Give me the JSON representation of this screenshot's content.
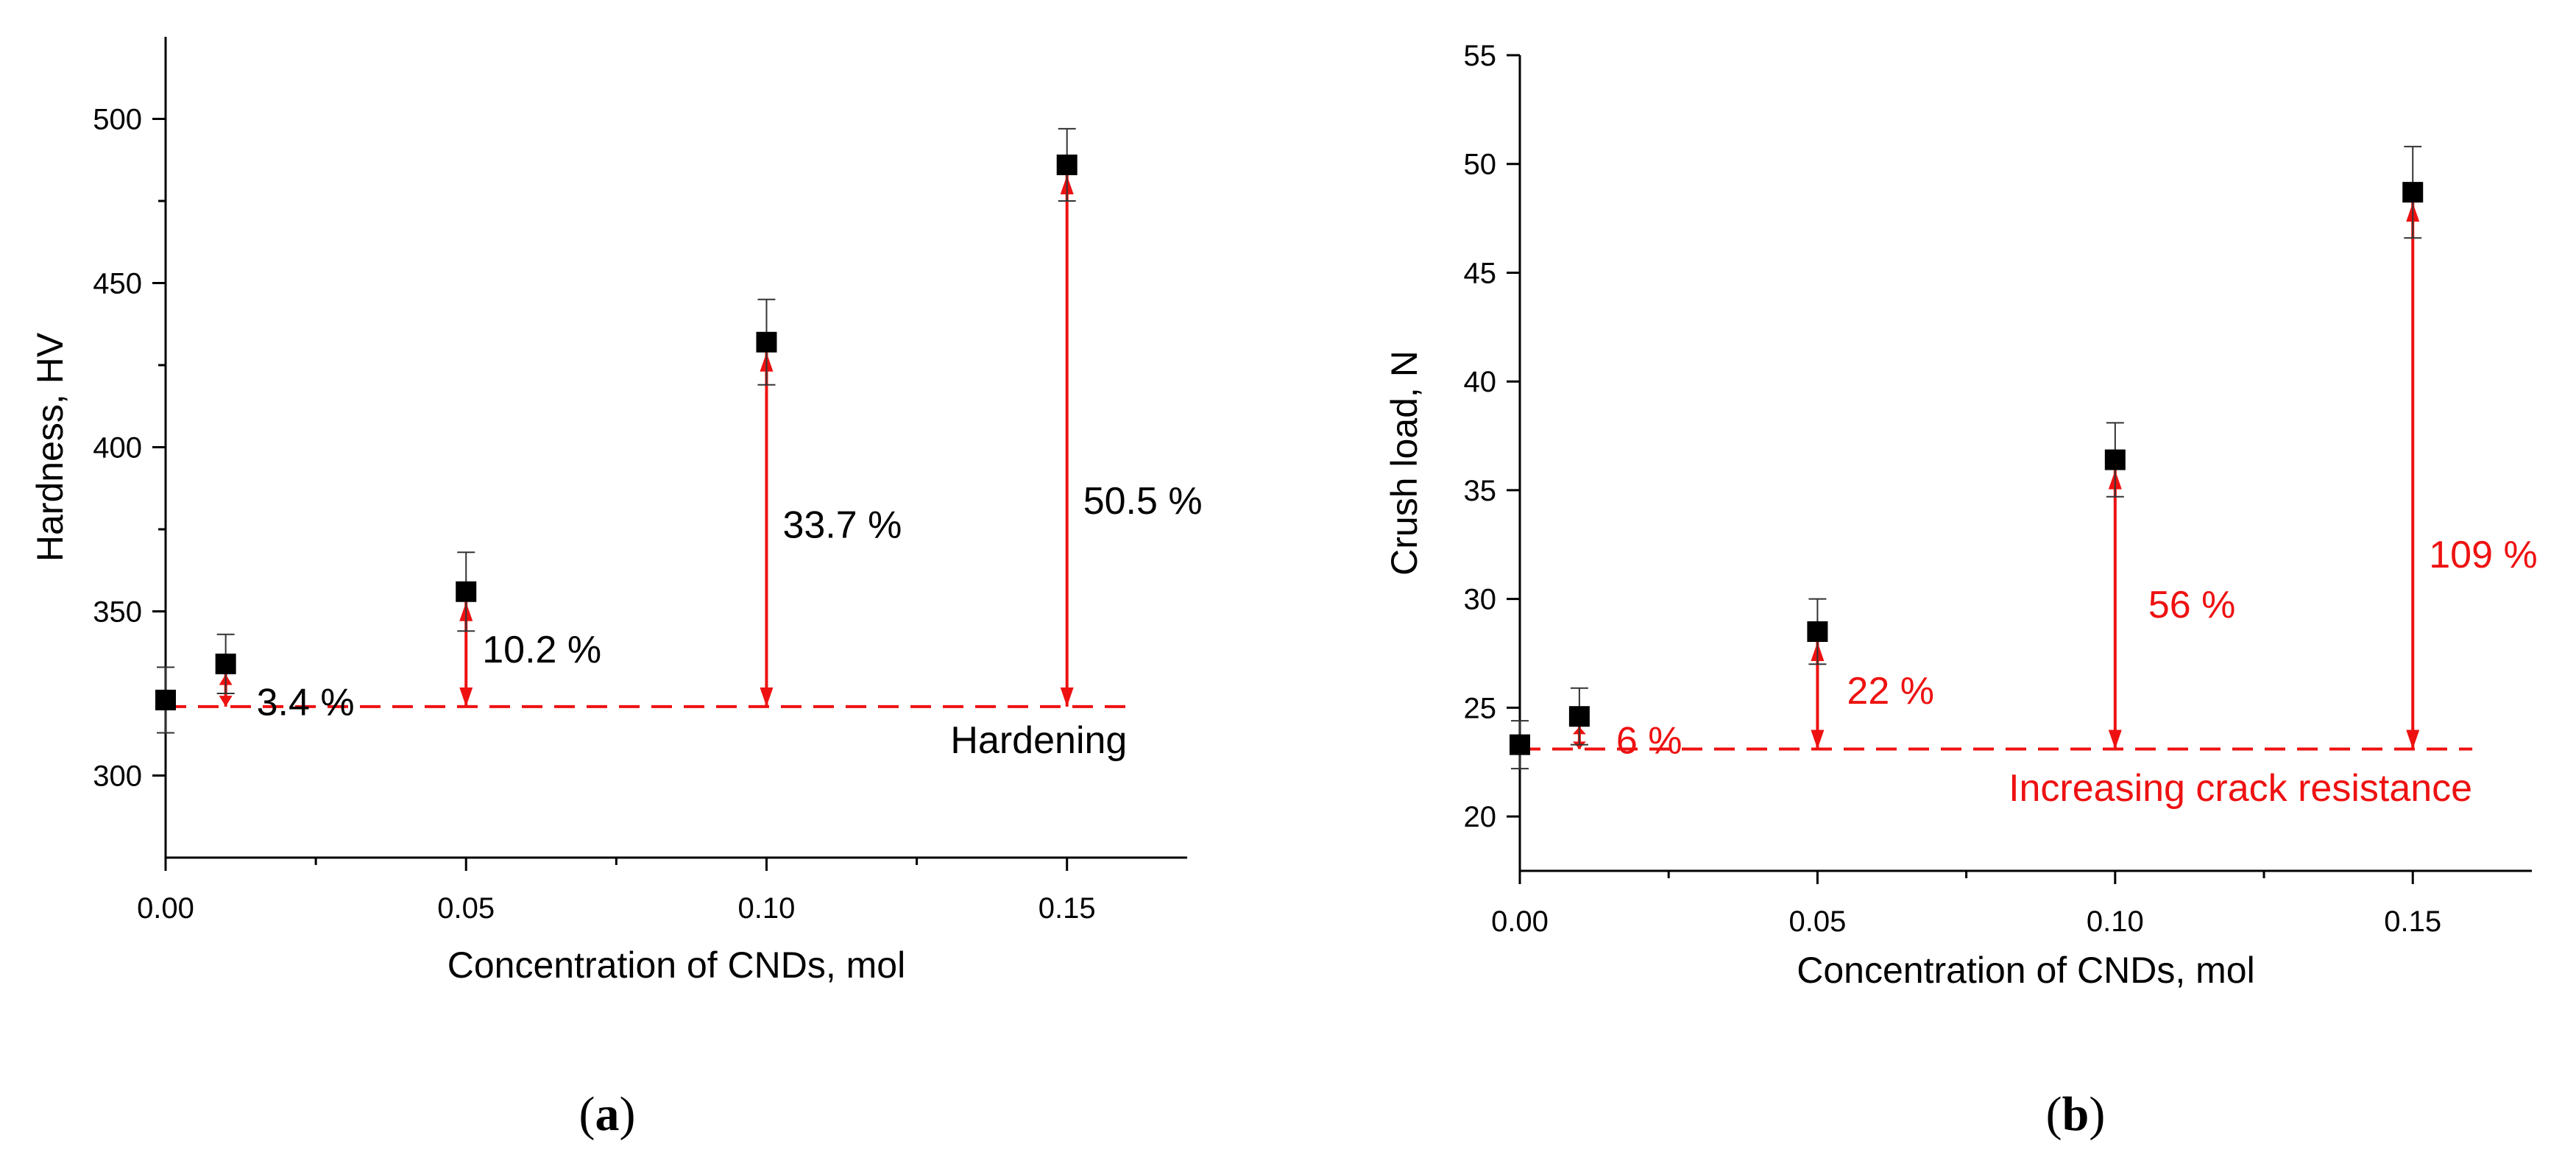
{
  "chart_data": [
    {
      "type": "scatter",
      "panel_label": "(a)",
      "panel_letter": "a",
      "xlabel": "Concentration of CNDs, mol",
      "ylabel": "Hardness, HV",
      "xlim": [
        0,
        0.17
      ],
      "ylim": [
        275,
        525
      ],
      "x_ticks": [
        0,
        0.05,
        0.1,
        0.15
      ],
      "x_tick_labels": [
        "0.00",
        "0.05",
        "0.10",
        "0.15"
      ],
      "x_minor_ticks": [
        0.025,
        0.075,
        0.125
      ],
      "y_ticks": [
        300,
        350,
        400,
        450,
        500
      ],
      "y_tick_labels": [
        "300",
        "350",
        "400",
        "450",
        "500"
      ],
      "y_minor_ticks": [
        325,
        375,
        425,
        475
      ],
      "series": [
        {
          "name": "Hardness",
          "x": [
            0.0,
            0.01,
            0.05,
            0.1,
            0.15
          ],
          "y": [
            323,
            334,
            356,
            432,
            486
          ],
          "err": [
            10,
            9,
            12,
            13,
            11
          ]
        }
      ],
      "reference_line": {
        "y": 321,
        "x_end": 0.16,
        "color": "#ee1111"
      },
      "reference_label": "Hardening",
      "annotation_color": "#000000",
      "annotations": [
        {
          "x": 0.01,
          "text": "3.4 %"
        },
        {
          "x": 0.05,
          "text": "10.2 %"
        },
        {
          "x": 0.1,
          "text": "33.7 %"
        },
        {
          "x": 0.15,
          "text": "50.5 %"
        }
      ]
    },
    {
      "type": "scatter",
      "panel_label": "(b)",
      "panel_letter": "b",
      "xlabel": "Concentration of CNDs, mol",
      "ylabel": "Crush load, N",
      "xlim": [
        0,
        0.17
      ],
      "ylim": [
        17.5,
        55
      ],
      "x_ticks": [
        0,
        0.05,
        0.1,
        0.15
      ],
      "x_tick_labels": [
        "0.00",
        "0.05",
        "0.10",
        "0.15"
      ],
      "x_minor_ticks": [
        0.025,
        0.075,
        0.125
      ],
      "y_ticks": [
        20,
        25,
        30,
        35,
        40,
        45,
        50,
        55
      ],
      "y_tick_labels": [
        "20",
        "25",
        "30",
        "35",
        "40",
        "45",
        "50",
        "55"
      ],
      "y_minor_ticks": [],
      "series": [
        {
          "name": "Crush load",
          "x": [
            0.0,
            0.01,
            0.05,
            0.1,
            0.15
          ],
          "y": [
            23.3,
            24.6,
            28.5,
            36.4,
            48.7
          ],
          "err": [
            1.1,
            1.3,
            1.5,
            1.7,
            2.1
          ]
        }
      ],
      "reference_line": {
        "y": 23.1,
        "x_end": 0.16,
        "color": "#ee1111"
      },
      "reference_label": "Increasing crack resistance",
      "annotation_color": "#ee1111",
      "annotations": [
        {
          "x": 0.01,
          "text": "6 %"
        },
        {
          "x": 0.05,
          "text": "22 %"
        },
        {
          "x": 0.1,
          "text": "56 %"
        },
        {
          "x": 0.15,
          "text": "109 %"
        }
      ]
    }
  ]
}
